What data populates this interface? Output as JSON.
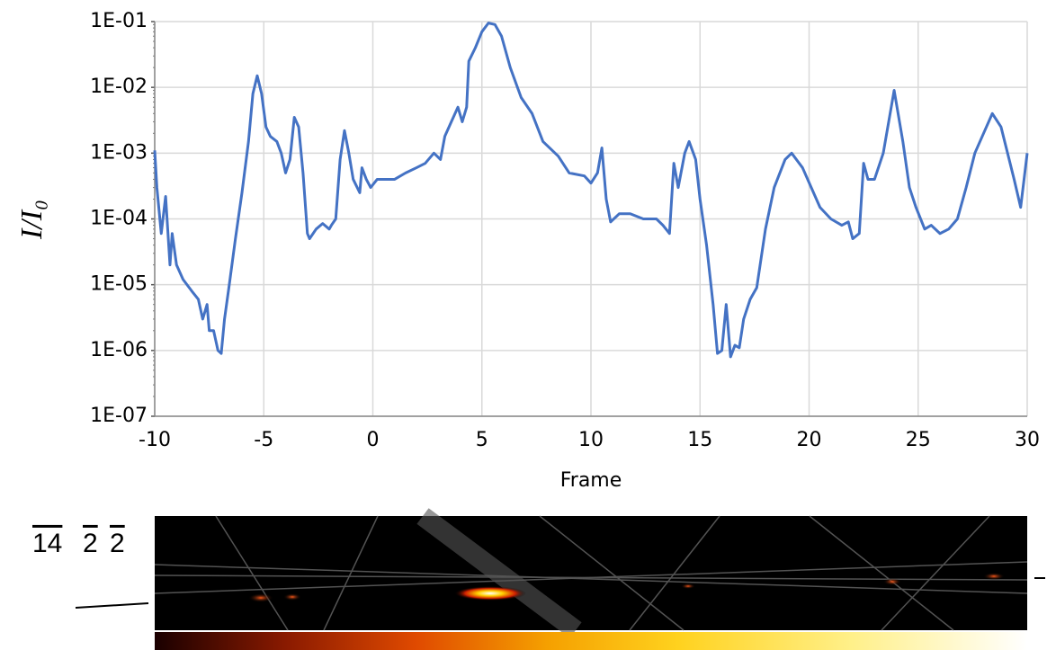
{
  "chart_data": {
    "type": "line",
    "x_label": "Frame",
    "y_label": "I/I₀",
    "color": "#4472c4",
    "log_y": true,
    "grid": true,
    "xlim": [
      -10,
      30
    ],
    "xticks": [
      -10,
      -5,
      0,
      5,
      10,
      15,
      20,
      25,
      30
    ],
    "ylim": [
      1e-07,
      0.1
    ],
    "yticks": [
      {
        "value": 1e-07,
        "label": "1E-07"
      },
      {
        "value": 1e-06,
        "label": "1E-06"
      },
      {
        "value": 1e-05,
        "label": "1E-05"
      },
      {
        "value": 0.0001,
        "label": "1E-04"
      },
      {
        "value": 0.001,
        "label": "1E-03"
      },
      {
        "value": 0.01,
        "label": "1E-02"
      },
      {
        "value": 0.1,
        "label": "1E-01"
      }
    ],
    "x": [
      -10,
      -9.9,
      -9.7,
      -9.5,
      -9.3,
      -9.2,
      -9.0,
      -8.7,
      -8.3,
      -8.0,
      -7.8,
      -7.6,
      -7.5,
      -7.3,
      -7.1,
      -6.95,
      -6.8,
      -6.6,
      -6.3,
      -6.0,
      -5.7,
      -5.5,
      -5.3,
      -5.1,
      -4.9,
      -4.7,
      -4.4,
      -4.2,
      -4.0,
      -3.8,
      -3.6,
      -3.4,
      -3.2,
      -3.0,
      -2.9,
      -2.6,
      -2.3,
      -2.0,
      -1.9,
      -1.7,
      -1.5,
      -1.3,
      -1.1,
      -0.9,
      -0.6,
      -0.5,
      -0.3,
      -0.1,
      0.2,
      0.6,
      1.0,
      1.5,
      2.0,
      2.4,
      2.8,
      3.1,
      3.3,
      3.6,
      3.9,
      4.1,
      4.3,
      4.4,
      4.7,
      5.0,
      5.3,
      5.6,
      5.9,
      6.3,
      6.8,
      7.3,
      7.8,
      8.5,
      9.0,
      9.7,
      10.0,
      10.3,
      10.5,
      10.7,
      10.9,
      11.3,
      11.8,
      12.4,
      13.0,
      13.3,
      13.6,
      13.8,
      14.0,
      14.3,
      14.5,
      14.8,
      15.0,
      15.3,
      15.6,
      15.8,
      16.0,
      16.2,
      16.4,
      16.6,
      16.8,
      17.0,
      17.3,
      17.6,
      18.0,
      18.4,
      18.9,
      19.2,
      19.7,
      20.1,
      20.5,
      21.0,
      21.5,
      21.8,
      22.0,
      22.3,
      22.5,
      22.7,
      23.0,
      23.4,
      23.9,
      24.3,
      24.6,
      24.9,
      25.3,
      25.6,
      26.0,
      26.4,
      26.8,
      27.2,
      27.6,
      28.0,
      28.4,
      28.8,
      29.1,
      29.4,
      29.7,
      30.0
    ],
    "values": [
      0.0011,
      0.0003,
      6e-05,
      0.00022,
      2e-05,
      6e-05,
      2e-05,
      1.2e-05,
      8e-06,
      6e-06,
      3e-06,
      5e-06,
      2e-06,
      2e-06,
      1e-06,
      9e-07,
      3e-06,
      9e-06,
      5e-05,
      0.00025,
      0.0015,
      0.008,
      0.015,
      0.008,
      0.0025,
      0.0018,
      0.0015,
      0.001,
      0.0005,
      0.0008,
      0.0035,
      0.0025,
      0.0005,
      6e-05,
      5e-05,
      7e-05,
      8.5e-05,
      7e-05,
      8e-05,
      0.0001,
      0.0008,
      0.0022,
      0.001,
      0.0004,
      0.00025,
      0.0006,
      0.0004,
      0.0003,
      0.0004,
      0.0004,
      0.0004,
      0.0005,
      0.0006,
      0.0007,
      0.001,
      0.0008,
      0.0018,
      0.003,
      0.005,
      0.003,
      0.005,
      0.025,
      0.04,
      0.07,
      0.095,
      0.09,
      0.06,
      0.02,
      0.007,
      0.004,
      0.0015,
      0.0009,
      0.0005,
      0.00045,
      0.00035,
      0.0005,
      0.0012,
      0.0002,
      9e-05,
      0.00012,
      0.00012,
      0.0001,
      0.0001,
      8e-05,
      6e-05,
      0.0007,
      0.0003,
      0.001,
      0.0015,
      0.0008,
      0.0002,
      4e-05,
      5e-06,
      9e-07,
      1e-06,
      5e-06,
      8e-07,
      1.2e-06,
      1.1e-06,
      3e-06,
      6e-06,
      9e-06,
      7e-05,
      0.0003,
      0.0008,
      0.001,
      0.0006,
      0.0003,
      0.00015,
      0.0001,
      8e-05,
      9e-05,
      5e-05,
      6e-05,
      0.0007,
      0.0004,
      0.0004,
      0.001,
      0.009,
      0.0015,
      0.0003,
      0.00015,
      7e-05,
      8e-05,
      6e-05,
      7e-05,
      0.0001,
      0.0003,
      0.001,
      0.002,
      0.004,
      0.0025,
      0.001,
      0.0004,
      0.00015,
      0.001
    ],
    "reflection_indices": [
      "14",
      "2",
      "2"
    ]
  }
}
